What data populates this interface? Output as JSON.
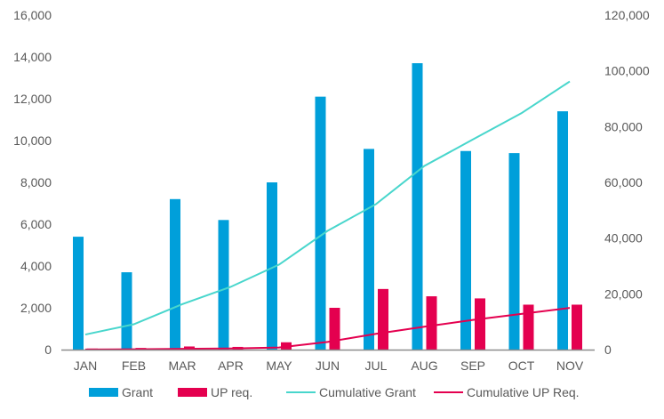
{
  "chart_data": {
    "type": "bar",
    "title": "",
    "xlabel": "",
    "ylabel": "",
    "y2label": "",
    "categories": [
      "JAN",
      "FEB",
      "MAR",
      "APR",
      "MAY",
      "JUN",
      "JUL",
      "AUG",
      "SEP",
      "OCT",
      "NOV"
    ],
    "ylim": [
      0,
      16000
    ],
    "yticks": [
      0,
      2000,
      4000,
      6000,
      8000,
      10000,
      12000,
      14000,
      16000
    ],
    "ytick_labels": [
      "0",
      "2,000",
      "4,000",
      "6,000",
      "8,000",
      "10,000",
      "12,000",
      "14,000",
      "16,000"
    ],
    "y2lim": [
      0,
      120000
    ],
    "y2ticks": [
      0,
      20000,
      40000,
      60000,
      80000,
      100000,
      120000
    ],
    "y2tick_labels": [
      "0",
      "20,000",
      "40,000",
      "60,000",
      "80,000",
      "100,000",
      "120,000"
    ],
    "grid": false,
    "legend_position": "bottom",
    "series": [
      {
        "name": "Grant",
        "type": "bar",
        "axis": "left",
        "color": "#009FDA",
        "values": [
          5400,
          3700,
          7200,
          6200,
          8000,
          12100,
          9600,
          13700,
          9500,
          9400,
          11400
        ]
      },
      {
        "name": "UP req.",
        "type": "bar",
        "axis": "left",
        "color": "#E4004F",
        "values": [
          50,
          80,
          150,
          130,
          350,
          2000,
          2900,
          2550,
          2450,
          2150,
          2150
        ]
      },
      {
        "name": "Cumulative Grant",
        "type": "line",
        "axis": "right",
        "color": "#48D6CC",
        "values": [
          5400,
          9100,
          16300,
          22500,
          30500,
          42600,
          52200,
          65900,
          75400,
          84800,
          96200
        ]
      },
      {
        "name": "Cumulative UP Req.",
        "type": "line",
        "axis": "right",
        "color": "#E4004F",
        "values": [
          50,
          130,
          280,
          410,
          760,
          2760,
          5660,
          8210,
          10660,
          12810,
          14960
        ]
      }
    ]
  }
}
